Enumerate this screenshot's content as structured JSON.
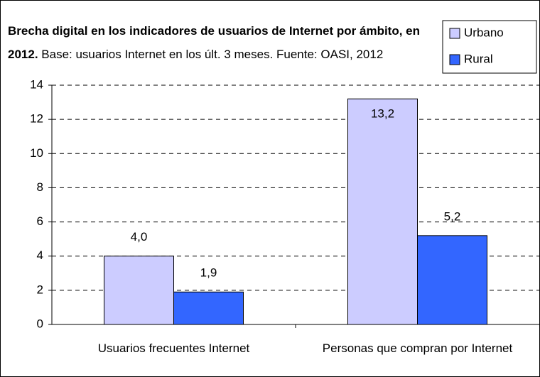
{
  "chart_data": {
    "type": "bar",
    "title": "Brecha digital en los indicadores de usuarios de Internet por ámbito, en 2012.",
    "subtitle": "Base: usuarios Internet en los últ. 3 meses.  Fuente: OASI, 2012",
    "categories": [
      "Usuarios frecuentes Internet",
      "Personas que compran por Internet"
    ],
    "series": [
      {
        "name": "Urbano",
        "color": "#ccccff",
        "values": [
          4.0,
          13.2
        ],
        "value_labels": [
          "4,0",
          "13,2"
        ]
      },
      {
        "name": "Rural",
        "color": "#3366ff",
        "values": [
          1.9,
          5.2
        ],
        "value_labels": [
          "1,9",
          "5,2"
        ]
      }
    ],
    "ylim": [
      0,
      14
    ],
    "yticks": [
      0,
      2,
      4,
      6,
      8,
      10,
      12,
      14
    ],
    "grid": true,
    "legend": "top-right"
  }
}
